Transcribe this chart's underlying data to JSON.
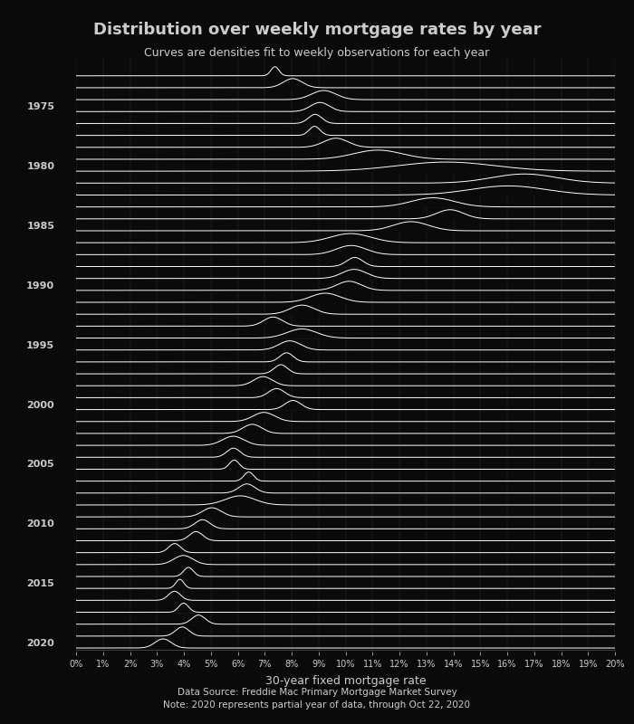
{
  "title": "Distribution over weekly mortgage rates by year",
  "subtitle": "Curves are densities fit to weekly observations for each year",
  "xlabel": "30-year fixed mortgage rate",
  "source_note": "Data Source: Freddie Mac Primary Mortgage Market Survey\nNote: 2020 represents partial year of data, through Oct 22, 2020",
  "bg_color": "#0a0a0a",
  "text_color": "#cccccc",
  "line_color": "#ffffff",
  "years": [
    1972,
    1973,
    1974,
    1975,
    1976,
    1977,
    1978,
    1979,
    1980,
    1981,
    1982,
    1983,
    1984,
    1985,
    1986,
    1987,
    1988,
    1989,
    1990,
    1991,
    1992,
    1993,
    1994,
    1995,
    1996,
    1997,
    1998,
    1999,
    2000,
    2001,
    2002,
    2003,
    2004,
    2005,
    2006,
    2007,
    2008,
    2009,
    2010,
    2011,
    2012,
    2013,
    2014,
    2015,
    2016,
    2017,
    2018,
    2019,
    2020
  ],
  "year_data": {
    "1972": {
      "mean": 7.38,
      "std": 0.15
    },
    "1973": {
      "mean": 8.04,
      "std": 0.35
    },
    "1974": {
      "mean": 9.19,
      "std": 0.45
    },
    "1975": {
      "mean": 9.05,
      "std": 0.35
    },
    "1976": {
      "mean": 8.87,
      "std": 0.25
    },
    "1977": {
      "mean": 8.85,
      "std": 0.2
    },
    "1978": {
      "mean": 9.64,
      "std": 0.45
    },
    "1979": {
      "mean": 11.2,
      "std": 0.9
    },
    "1980": {
      "mean": 13.74,
      "std": 1.8
    },
    "1981": {
      "mean": 16.64,
      "std": 1.2
    },
    "1982": {
      "mean": 16.04,
      "std": 1.4
    },
    "1983": {
      "mean": 13.24,
      "std": 0.8
    },
    "1984": {
      "mean": 13.88,
      "std": 0.5
    },
    "1985": {
      "mean": 12.43,
      "std": 0.65
    },
    "1986": {
      "mean": 10.19,
      "std": 0.75
    },
    "1987": {
      "mean": 10.21,
      "std": 0.55
    },
    "1988": {
      "mean": 10.34,
      "std": 0.3
    },
    "1989": {
      "mean": 10.32,
      "std": 0.45
    },
    "1990": {
      "mean": 10.13,
      "std": 0.45
    },
    "1991": {
      "mean": 9.25,
      "std": 0.55
    },
    "1992": {
      "mean": 8.39,
      "std": 0.45
    },
    "1993": {
      "mean": 7.31,
      "std": 0.35
    },
    "1994": {
      "mean": 8.38,
      "std": 0.55
    },
    "1995": {
      "mean": 7.93,
      "std": 0.4
    },
    "1996": {
      "mean": 7.81,
      "std": 0.25
    },
    "1997": {
      "mean": 7.6,
      "std": 0.25
    },
    "1998": {
      "mean": 6.94,
      "std": 0.35
    },
    "1999": {
      "mean": 7.44,
      "std": 0.3
    },
    "2000": {
      "mean": 8.05,
      "std": 0.3
    },
    "2001": {
      "mean": 6.97,
      "std": 0.4
    },
    "2002": {
      "mean": 6.54,
      "std": 0.35
    },
    "2003": {
      "mean": 5.83,
      "std": 0.4
    },
    "2004": {
      "mean": 5.84,
      "std": 0.25
    },
    "2005": {
      "mean": 5.87,
      "std": 0.18
    },
    "2006": {
      "mean": 6.41,
      "std": 0.18
    },
    "2007": {
      "mean": 6.34,
      "std": 0.3
    },
    "2008": {
      "mean": 6.09,
      "std": 0.55
    },
    "2009": {
      "mean": 5.04,
      "std": 0.35
    },
    "2010": {
      "mean": 4.69,
      "std": 0.28
    },
    "2011": {
      "mean": 4.45,
      "std": 0.25
    },
    "2012": {
      "mean": 3.66,
      "std": 0.22
    },
    "2013": {
      "mean": 3.98,
      "std": 0.35
    },
    "2014": {
      "mean": 4.17,
      "std": 0.18
    },
    "2015": {
      "mean": 3.85,
      "std": 0.15
    },
    "2016": {
      "mean": 3.65,
      "std": 0.22
    },
    "2017": {
      "mean": 3.99,
      "std": 0.18
    },
    "2018": {
      "mean": 4.54,
      "std": 0.25
    },
    "2019": {
      "mean": 3.94,
      "std": 0.25
    },
    "2020": {
      "mean": 3.23,
      "std": 0.3
    }
  },
  "x_min": 0,
  "x_max": 20,
  "density_scale": 0.85,
  "label_years": [
    1975,
    1980,
    1985,
    1990,
    1995,
    2000,
    2005,
    2010,
    2015,
    2020
  ]
}
